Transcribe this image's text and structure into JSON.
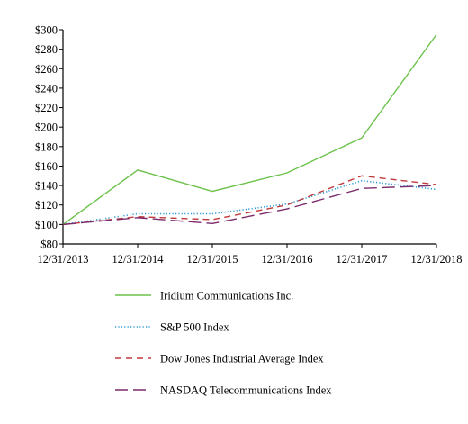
{
  "chart_data": {
    "type": "line",
    "x": [
      "12/31/2013",
      "12/31/2014",
      "12/31/2015",
      "12/31/2016",
      "12/31/2017",
      "12/31/2018"
    ],
    "y_ticks": [
      "$80",
      "$100",
      "$120",
      "$140",
      "$160",
      "$180",
      "$200",
      "$220",
      "$240",
      "$260",
      "$280",
      "$300"
    ],
    "ylim": [
      80,
      300
    ],
    "y_tick_step": 20,
    "grid": false,
    "legend_position": "bottom",
    "series": [
      {
        "name": "Iridium Communications Inc.",
        "values": [
          100,
          156,
          134,
          153,
          189,
          295
        ],
        "color": "#6cc24a",
        "style": "solid"
      },
      {
        "name": "S&P 500 Index",
        "values": [
          100,
          111,
          111,
          121,
          145,
          136
        ],
        "color": "#2e9ad6",
        "style": "dotted"
      },
      {
        "name": "Dow Jones Industrial Average Index",
        "values": [
          100,
          108,
          105,
          120,
          150,
          141
        ],
        "color": "#c0393b",
        "style": "dashed"
      },
      {
        "name": "NASDAQ Telecommunications Index",
        "values": [
          100,
          107,
          101,
          116,
          137,
          140
        ],
        "color": "#7b2c6b",
        "style": "longdash"
      }
    ]
  }
}
